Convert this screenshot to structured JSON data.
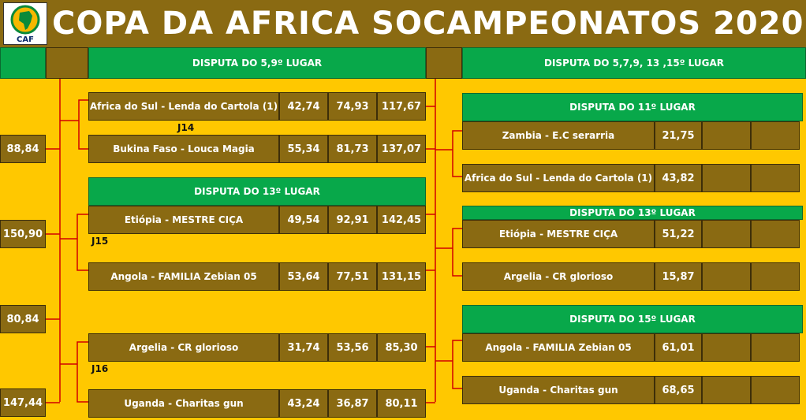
{
  "header": {
    "title": "COPA DA AFRICA SOCAMPEONATOS 2020",
    "logo_text": "CAF"
  },
  "left_scores": [
    "88,84",
    "150,90",
    "80,84",
    "147,44"
  ],
  "section_5_9": {
    "title": "DISPUTA DO 5,9º LUGAR",
    "game_label": "J14",
    "rows": [
      {
        "team": "Africa do Sul - Lenda do Cartola (1)",
        "s1": "42,74",
        "s2": "74,93",
        "total": "117,67"
      },
      {
        "team": "Bukina Faso - Louca Magia",
        "s1": "55,34",
        "s2": "81,73",
        "total": "137,07"
      }
    ]
  },
  "section_13_left": {
    "title": "DISPUTA DO 13º LUGAR",
    "game_label": "J15",
    "rows": [
      {
        "team": "Etiópia - MESTRE CIÇA",
        "s1": "49,54",
        "s2": "92,91",
        "total": "142,45"
      },
      {
        "team": "Angola - FAMILIA Zebian 05",
        "s1": "53,64",
        "s2": "77,51",
        "total": "131,15"
      }
    ]
  },
  "section_j16": {
    "game_label": "J16",
    "rows": [
      {
        "team": "Argelia - CR glorioso",
        "s1": "31,74",
        "s2": "53,56",
        "total": "85,30"
      },
      {
        "team": "Uganda - Charitas gun",
        "s1": "43,24",
        "s2": "36,87",
        "total": "80,11"
      }
    ]
  },
  "right_header": "DISPUTA DO 5,7,9, 13 ,15º LUGAR",
  "section_11": {
    "title": "DISPUTA DO 11º LUGAR",
    "rows": [
      {
        "team": "Zambia - E.C serarria",
        "score": "21,75"
      },
      {
        "team": "Africa do Sul - Lenda do Cartola (1)",
        "score": "43,82"
      }
    ]
  },
  "section_13_right": {
    "title": "DISPUTA DO 13º LUGAR",
    "rows": [
      {
        "team": "Etiópia - MESTRE CIÇA",
        "score": "51,22"
      },
      {
        "team": "Argelia - CR glorioso",
        "score": "15,87"
      }
    ]
  },
  "section_15": {
    "title": "DISPUTA DO 15º LUGAR",
    "rows": [
      {
        "team": "Angola - FAMILIA Zebian 05",
        "score": "61,01"
      },
      {
        "team": "Uganda - Charitas gun",
        "score": "68,65"
      }
    ]
  },
  "colors": {
    "background": "#ffc800",
    "cell": "#8a6a12",
    "header_green": "#08a84a",
    "bracket_line": "#d00000"
  }
}
